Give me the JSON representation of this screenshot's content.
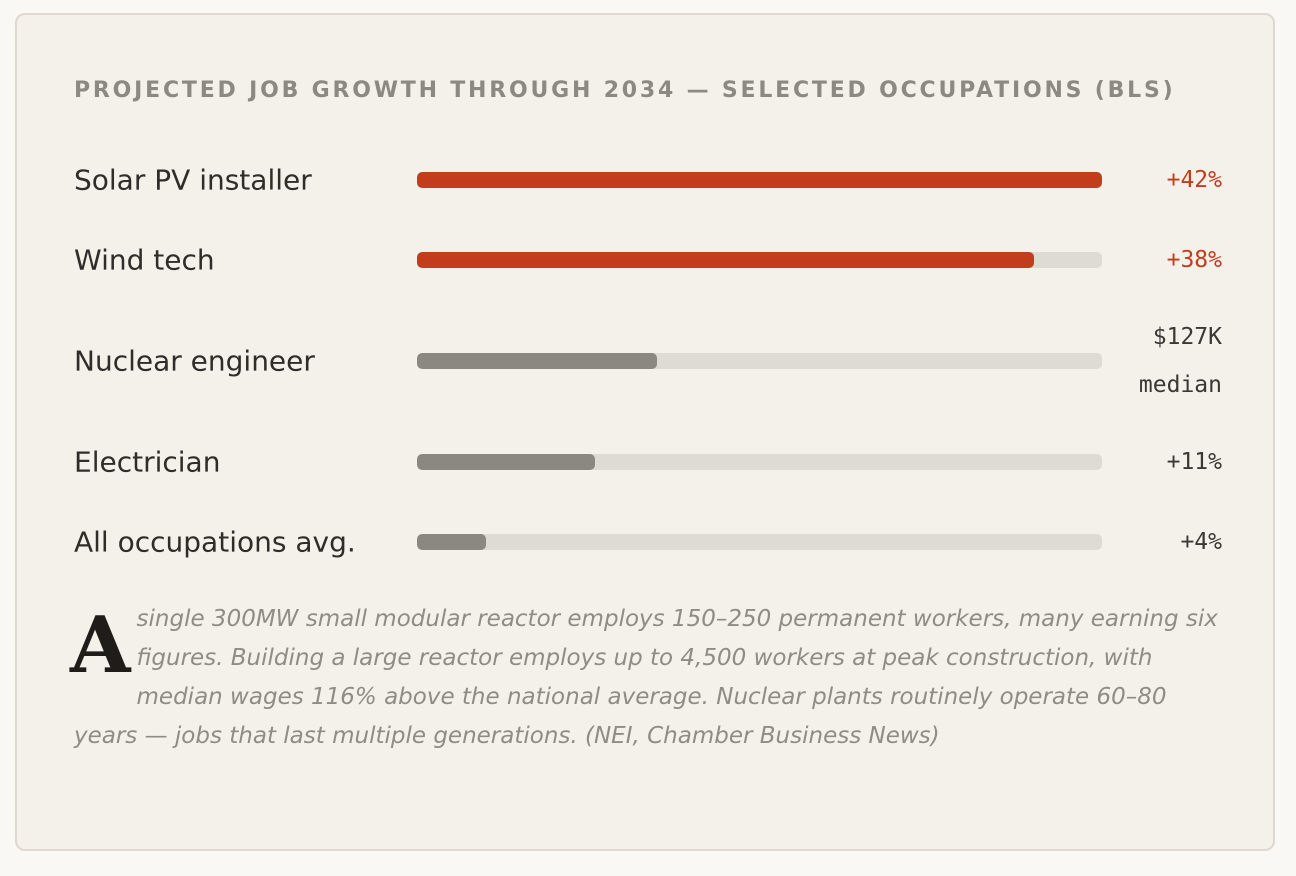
{
  "chart_data": {
    "type": "bar",
    "orientation": "horizontal",
    "title": "PROJECTED JOB GROWTH THROUGH 2034 — SELECTED OCCUPATIONS (BLS)",
    "categories": [
      "Solar PV installer",
      "Wind tech",
      "Nuclear engineer",
      "Electrician",
      "All occupations avg."
    ],
    "values": [
      42,
      38,
      null,
      11,
      4
    ],
    "fill_fraction": [
      1.0,
      0.9,
      0.35,
      0.26,
      0.1
    ],
    "value_labels": [
      "+42%",
      "+38%",
      "$127K median",
      "+11%",
      "+4%"
    ],
    "highlighted": [
      true,
      true,
      false,
      false,
      false
    ],
    "units": "% growth"
  },
  "colors": {
    "accent": "#c23d1c",
    "neutral_bar": "#8a8880",
    "track": "#dedad4"
  },
  "note": {
    "dropcap": "A",
    "text": "single 300MW small modular reactor employs 150–250 permanent workers, many earning six figures. Building a large reactor employs up to 4,500 workers at peak construction, with median wages 116% above the national average. Nuclear plants routinely operate 60–80 years — jobs that last multiple generations. (NEI, Chamber Business News)"
  }
}
